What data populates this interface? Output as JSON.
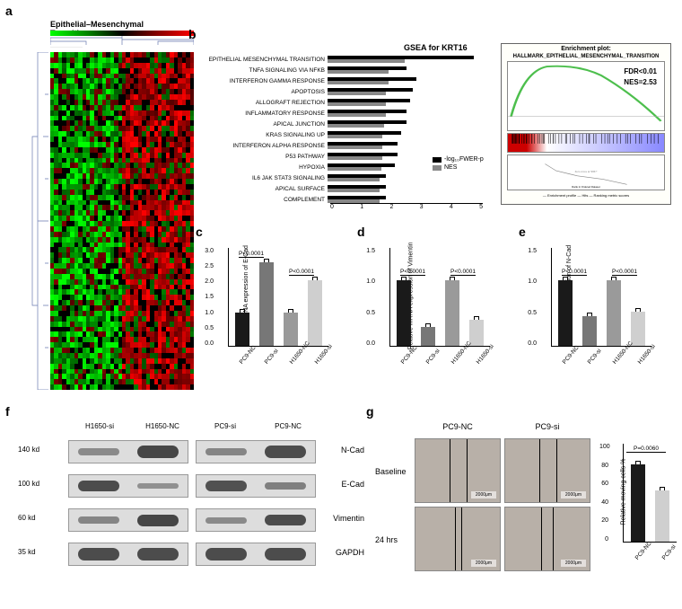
{
  "labels": {
    "a": "a",
    "b": "b",
    "c": "c",
    "d": "d",
    "e": "e",
    "f": "f",
    "g": "g"
  },
  "heatmap": {
    "title": "Epithelial–Mesenchymal Transition",
    "rows": 64,
    "cols": 36,
    "palette_low": "#00ff00",
    "palette_mid": "#000000",
    "palette_high": "#ff0000"
  },
  "gsea": {
    "title": "GSEA for KRT16",
    "xticks": [
      "0",
      "1",
      "2",
      "3",
      "4",
      "5"
    ],
    "legend_a": "-log₁₀FWER-p",
    "legend_b": "NES",
    "color_a": "#000000",
    "color_b": "#888888",
    "scale": 34,
    "items": [
      {
        "label": "EPITHELIAL MESENCHYMAL TRANSITION",
        "a": 4.8,
        "b": 2.53
      },
      {
        "label": "TNFA SIGNALING VIA NFKB",
        "a": 2.6,
        "b": 2.0
      },
      {
        "label": "INTERFERON GAMMA RESPONSE",
        "a": 2.9,
        "b": 2.0
      },
      {
        "label": "APOPTOSIS",
        "a": 2.8,
        "b": 1.9
      },
      {
        "label": "ALLOGRAFT REJECTION",
        "a": 2.7,
        "b": 1.9
      },
      {
        "label": "INFLAMMATORY RESPONSE",
        "a": 2.6,
        "b": 1.9
      },
      {
        "label": "APICAL JUNCTION",
        "a": 2.6,
        "b": 1.85
      },
      {
        "label": "KRAS SIGNALING UP",
        "a": 2.4,
        "b": 1.8
      },
      {
        "label": "INTERFERON ALPHA RESPONSE",
        "a": 2.3,
        "b": 1.8
      },
      {
        "label": "P53 PATHWAY",
        "a": 2.3,
        "b": 1.8
      },
      {
        "label": "HYPOXIA",
        "a": 2.2,
        "b": 1.75
      },
      {
        "label": "IL6 JAK STAT3 SIGNALING",
        "a": 1.9,
        "b": 1.7
      },
      {
        "label": "APICAL SURFACE",
        "a": 1.9,
        "b": 1.7
      },
      {
        "label": "COMPLEMENT",
        "a": 1.9,
        "b": 1.7
      }
    ]
  },
  "enrich": {
    "title": "Enrichment plot:",
    "sub": "HALLMARK_EPITHELIAL_MESENCHYMAL_TRANSITION",
    "fdr": "FDR<0.01",
    "nes": "NES=2.53",
    "curve_color": "#4dbf4d",
    "xlabel": "Rank in Ordered Dataset",
    "legend": "— Enrichment profile   — Hits   — Ranking metric scores"
  },
  "sample_labels": [
    "PC9-NC",
    "PC9-si",
    "H1650-NC",
    "H1650-si"
  ],
  "bar_colors": [
    "#1a1a1a",
    "#777777",
    "#9a9a9a",
    "#cfcfcf"
  ],
  "chart_ymax": 1.5,
  "charts": {
    "c": {
      "ylabel": "Relative mRNA expression\nof E-Cad",
      "yticks": [
        "0.0",
        "0.5",
        "1.0",
        "1.5",
        "2.0",
        "2.5",
        "3.0"
      ],
      "ymax": 3.0,
      "values": [
        1.0,
        2.55,
        1.0,
        2.0
      ],
      "sig": [
        {
          "from": 0,
          "to": 1,
          "text": "P<0.0001"
        },
        {
          "from": 2,
          "to": 3,
          "text": "P<0.0001"
        }
      ]
    },
    "d": {
      "ylabel": "Relative mRNA expression\nof Vimentin",
      "yticks": [
        "0.0",
        "0.5",
        "1.0",
        "1.5"
      ],
      "ymax": 1.5,
      "values": [
        1.0,
        0.28,
        1.0,
        0.4
      ],
      "sig": [
        {
          "from": 0,
          "to": 1,
          "text": "P<0.0001"
        },
        {
          "from": 2,
          "to": 3,
          "text": "P<0.0001"
        }
      ]
    },
    "e": {
      "ylabel": "Relative mRNA expression\nof N-Cad",
      "yticks": [
        "0.0",
        "0.5",
        "1.0",
        "1.5"
      ],
      "ymax": 1.5,
      "values": [
        1.0,
        0.45,
        1.0,
        0.52
      ],
      "sig": [
        {
          "from": 0,
          "to": 1,
          "text": "P<0.0001"
        },
        {
          "from": 2,
          "to": 3,
          "text": "P<0.0001"
        }
      ]
    }
  },
  "wb": {
    "cols": [
      "H1650-si",
      "H1650-NC",
      "PC9-si",
      "PC9-NC"
    ],
    "rows": [
      {
        "mw": "140 kd",
        "name": "N-Cad",
        "intens": [
          0.3,
          0.9,
          0.35,
          0.85
        ],
        "h": 12
      },
      {
        "mw": "100 kd",
        "name": "E-Cad",
        "intens": [
          0.85,
          0.25,
          0.8,
          0.4
        ],
        "h": 10
      },
      {
        "mw": "60 kd",
        "name": "Vimentin",
        "intens": [
          0.35,
          0.9,
          0.3,
          0.85
        ],
        "h": 10
      },
      {
        "mw": "35 kd",
        "name": "GAPDH",
        "intens": [
          0.85,
          0.85,
          0.85,
          0.85
        ],
        "h": 12
      }
    ]
  },
  "wound": {
    "cols": [
      "PC9-NC",
      "PC9-si"
    ],
    "rows": [
      "Baseline",
      "24 hrs"
    ],
    "scalebar": "2000μm",
    "chart": {
      "ylabel": "Relative moving cells %",
      "yticks": [
        "0",
        "20",
        "40",
        "60",
        "80",
        "100"
      ],
      "ymax": 100,
      "values": [
        78,
        52
      ],
      "colors": [
        "#1a1a1a",
        "#cfcfcf"
      ],
      "labels": [
        "PC9-NC",
        "PC9-si"
      ],
      "sig": {
        "text": "P=0.0060"
      }
    }
  }
}
